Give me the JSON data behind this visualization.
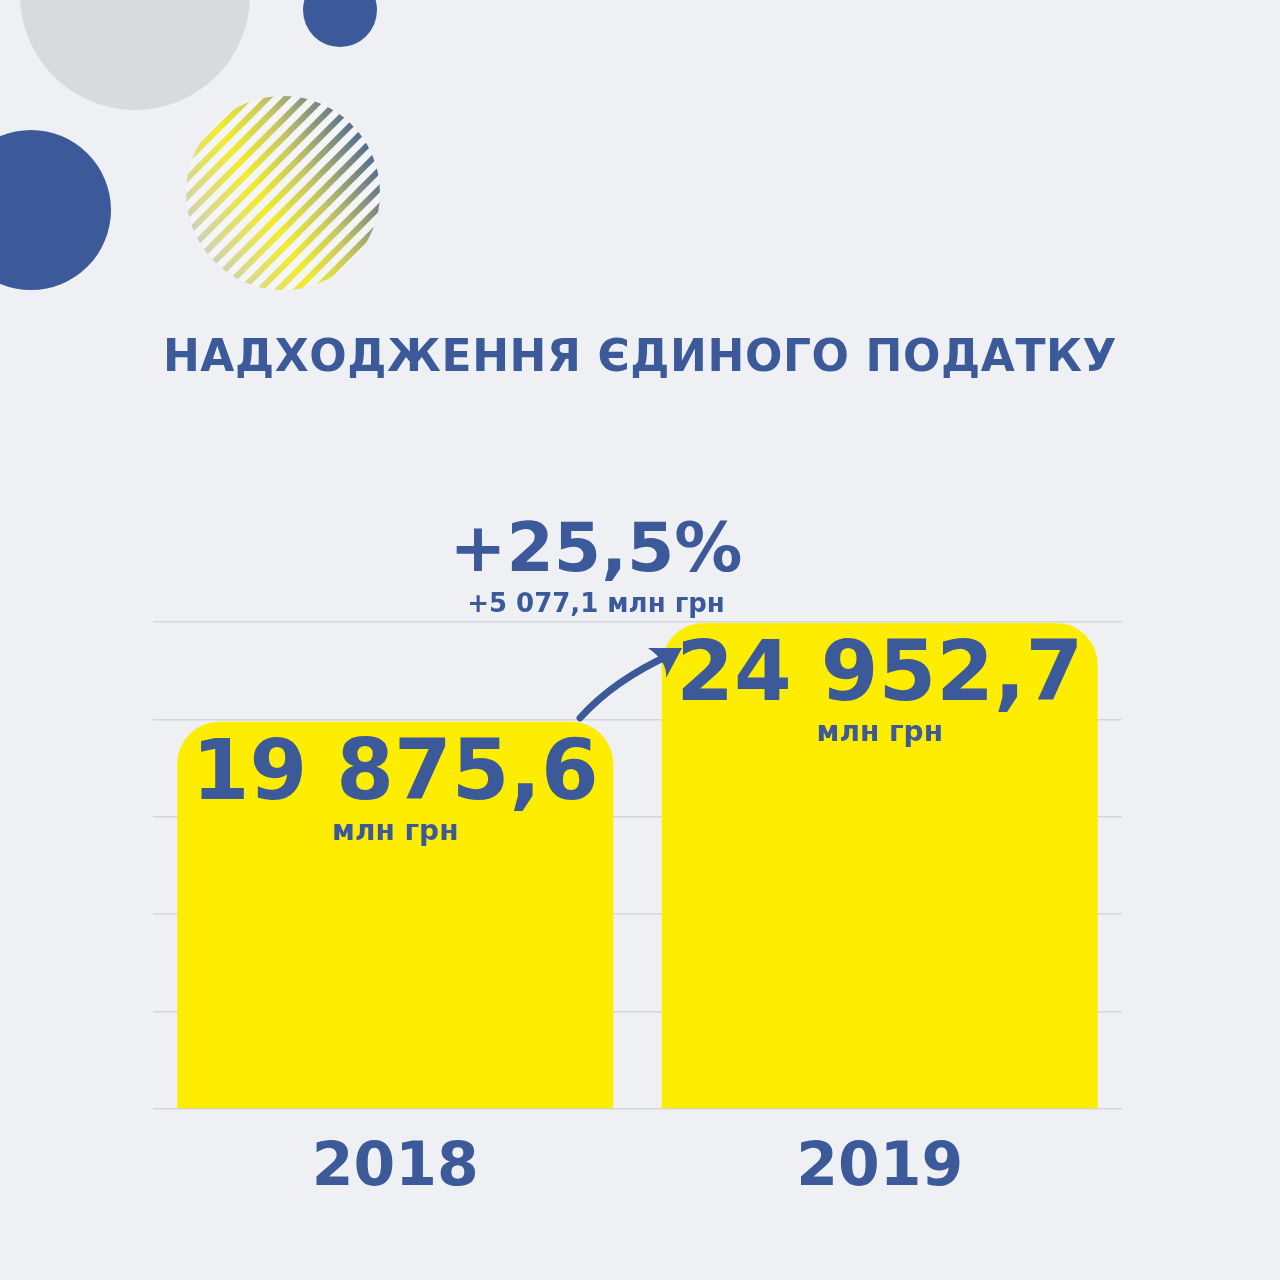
{
  "chart_data": {
    "type": "bar",
    "title": "НАДХОДЖЕННЯ ЄДИНОГО ПОДАТКУ",
    "categories": [
      "2018",
      "2019"
    ],
    "values": [
      19875.6,
      24952.7
    ],
    "color": "#ffed00",
    "ylim": [
      0,
      25000
    ],
    "yticks": [
      {
        "value": 0,
        "label": null
      },
      {
        "value": 5000,
        "label": null
      },
      {
        "value": 10000,
        "label": null
      },
      {
        "value": 15000,
        "label": null
      },
      {
        "value": 20000,
        "label": null
      },
      {
        "value": 25000,
        "label": null
      }
    ],
    "grid": "y",
    "tick_labels": "x",
    "value_labels": [
      "19 875,6",
      "24 952,7"
    ],
    "annotations": [
      "+25,5%",
      "+5 077,1 млн грн",
      "млн грн",
      "млн грн"
    ]
  }
}
